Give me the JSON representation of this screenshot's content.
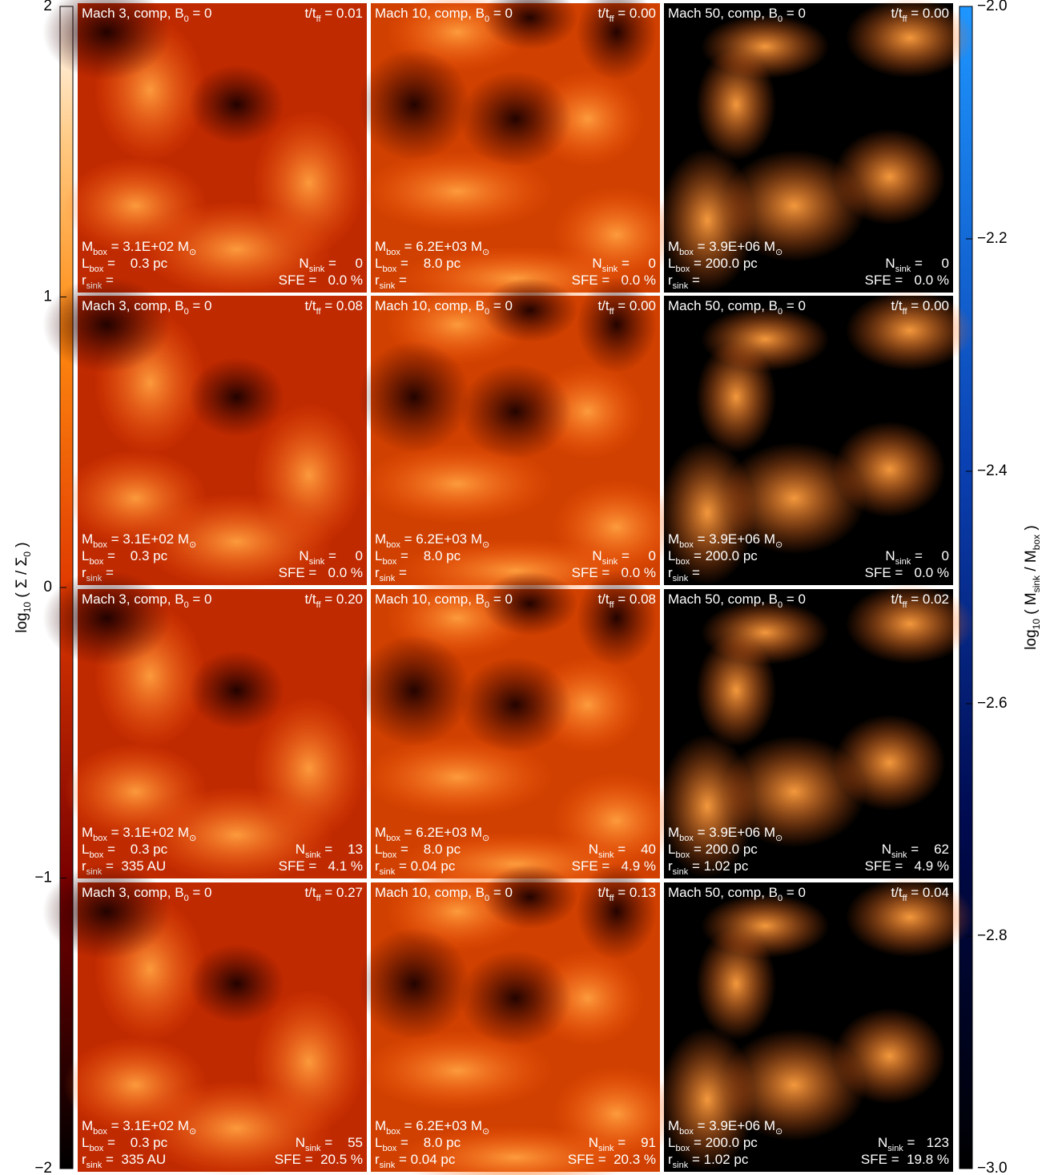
{
  "figure": {
    "colorbar_left": {
      "label": [
        "log",
        "10",
        " ( Σ / Σ",
        "0",
        " )"
      ],
      "ylim": [
        -2,
        2
      ],
      "yticks": [
        {
          "value": -2,
          "label": "−2"
        },
        {
          "value": -1,
          "label": "−1"
        },
        0,
        1,
        2
      ]
    },
    "colorbar_right": {
      "label": [
        "log",
        "10",
        " ( M",
        "sink",
        " / M",
        "box",
        " )"
      ],
      "ylim": [
        -3,
        -2
      ],
      "yticks": [
        {
          "value": -3,
          "label": "−3.0"
        },
        {
          "value": -2.8,
          "label": "−2.8"
        },
        {
          "value": -2.6,
          "label": "−2.6"
        },
        {
          "value": -2.4,
          "label": "−2.4"
        },
        {
          "value": -2.2,
          "label": "−2.2"
        },
        {
          "value": -2,
          "label": "−2.0"
        }
      ]
    },
    "panels": [
      {
        "title": [
          "Mach 3, comp, B",
          "0",
          " = 0"
        ],
        "time": [
          "t/t",
          "ff",
          " = 0.01"
        ],
        "mass": [
          "M",
          "box",
          " = 3.1E+02 M",
          "⊙"
        ],
        "length": [
          "L",
          "box",
          " =    0.3 pc"
        ],
        "radius": [
          "r",
          "sink",
          " ="
        ],
        "nsink": [
          "N",
          "sink",
          " =     0"
        ],
        "sfe": [
          "SFE =   0.0 %"
        ]
      },
      {
        "title": [
          "Mach 10, comp, B",
          "0",
          " = 0"
        ],
        "time": [
          "t/t",
          "ff",
          " = 0.00"
        ],
        "mass": [
          "M",
          "box",
          " = 6.2E+03 M",
          "⊙"
        ],
        "length": [
          "L",
          "box",
          " =    8.0 pc"
        ],
        "radius": [
          "r",
          "sink",
          " ="
        ],
        "nsink": [
          "N",
          "sink",
          " =     0"
        ],
        "sfe": [
          "SFE =   0.0 %"
        ]
      },
      {
        "title": [
          "Mach 50, comp, B",
          "0",
          " = 0"
        ],
        "time": [
          "t/t",
          "ff",
          " = 0.00"
        ],
        "mass": [
          "M",
          "box",
          " = 3.9E+06 M",
          "⊙"
        ],
        "length": [
          "L",
          "box",
          " = 200.0 pc"
        ],
        "radius": [
          "r",
          "sink",
          " ="
        ],
        "nsink": [
          "N",
          "sink",
          " =     0"
        ],
        "sfe": [
          "SFE =   0.0 %"
        ]
      },
      {
        "title": [
          "Mach 3, comp, B",
          "0",
          " = 0"
        ],
        "time": [
          "t/t",
          "ff",
          " = 0.08"
        ],
        "mass": [
          "M",
          "box",
          " = 3.1E+02 M",
          "⊙"
        ],
        "length": [
          "L",
          "box",
          " =    0.3 pc"
        ],
        "radius": [
          "r",
          "sink",
          " ="
        ],
        "nsink": [
          "N",
          "sink",
          " =     0"
        ],
        "sfe": [
          "SFE =   0.0 %"
        ]
      },
      {
        "title": [
          "Mach 10, comp, B",
          "0",
          " = 0"
        ],
        "time": [
          "t/t",
          "ff",
          " = 0.00"
        ],
        "mass": [
          "M",
          "box",
          " = 6.2E+03 M",
          "⊙"
        ],
        "length": [
          "L",
          "box",
          " =    8.0 pc"
        ],
        "radius": [
          "r",
          "sink",
          " ="
        ],
        "nsink": [
          "N",
          "sink",
          " =     0"
        ],
        "sfe": [
          "SFE =   0.0 %"
        ]
      },
      {
        "title": [
          "Mach 50, comp, B",
          "0",
          " = 0"
        ],
        "time": [
          "t/t",
          "ff",
          " = 0.00"
        ],
        "mass": [
          "M",
          "box",
          " = 3.9E+06 M",
          "⊙"
        ],
        "length": [
          "L",
          "box",
          " = 200.0 pc"
        ],
        "radius": [
          "r",
          "sink",
          " ="
        ],
        "nsink": [
          "N",
          "sink",
          " =     0"
        ],
        "sfe": [
          "SFE =   0.0 %"
        ]
      },
      {
        "title": [
          "Mach 3, comp, B",
          "0",
          " = 0"
        ],
        "time": [
          "t/t",
          "ff",
          " = 0.20"
        ],
        "mass": [
          "M",
          "box",
          " = 3.1E+02 M",
          "⊙"
        ],
        "length": [
          "L",
          "box",
          " =    0.3 pc"
        ],
        "radius": [
          "r",
          "sink",
          " =  335 AU"
        ],
        "nsink": [
          "N",
          "sink",
          " =    13"
        ],
        "sfe": [
          "SFE =   4.1 %"
        ]
      },
      {
        "title": [
          "Mach 10, comp, B",
          "0",
          " = 0"
        ],
        "time": [
          "t/t",
          "ff",
          " = 0.08"
        ],
        "mass": [
          "M",
          "box",
          " = 6.2E+03 M",
          "⊙"
        ],
        "length": [
          "L",
          "box",
          " =    8.0 pc"
        ],
        "radius": [
          "r",
          "sink",
          " = 0.04 pc"
        ],
        "nsink": [
          "N",
          "sink",
          " =    40"
        ],
        "sfe": [
          "SFE =   4.9 %"
        ]
      },
      {
        "title": [
          "Mach 50, comp, B",
          "0",
          " = 0"
        ],
        "time": [
          "t/t",
          "ff",
          " = 0.02"
        ],
        "mass": [
          "M",
          "box",
          " = 3.9E+06 M",
          "⊙"
        ],
        "length": [
          "L",
          "box",
          " = 200.0 pc"
        ],
        "radius": [
          "r",
          "sink",
          " = 1.02 pc"
        ],
        "nsink": [
          "N",
          "sink",
          " =    62"
        ],
        "sfe": [
          "SFE =   4.9 %"
        ]
      },
      {
        "title": [
          "Mach 3, comp, B",
          "0",
          " = 0"
        ],
        "time": [
          "t/t",
          "ff",
          " = 0.27"
        ],
        "mass": [
          "M",
          "box",
          " = 3.1E+02 M",
          "⊙"
        ],
        "length": [
          "L",
          "box",
          " =    0.3 pc"
        ],
        "radius": [
          "r",
          "sink",
          " =  335 AU"
        ],
        "nsink": [
          "N",
          "sink",
          " =    55"
        ],
        "sfe": [
          "SFE =  20.5 %"
        ]
      },
      {
        "title": [
          "Mach 10, comp, B",
          "0",
          " = 0"
        ],
        "time": [
          "t/t",
          "ff",
          " = 0.13"
        ],
        "mass": [
          "M",
          "box",
          " = 6.2E+03 M",
          "⊙"
        ],
        "length": [
          "L",
          "box",
          " =    8.0 pc"
        ],
        "radius": [
          "r",
          "sink",
          " = 0.04 pc"
        ],
        "nsink": [
          "N",
          "sink",
          " =    91"
        ],
        "sfe": [
          "SFE =  20.3 %"
        ]
      },
      {
        "title": [
          "Mach 50, comp, B",
          "0",
          " = 0"
        ],
        "time": [
          "t/t",
          "ff",
          " = 0.04"
        ],
        "mass": [
          "M",
          "box",
          " = 3.9E+06 M",
          "⊙"
        ],
        "length": [
          "L",
          "box",
          " = 200.0 pc"
        ],
        "radius": [
          "r",
          "sink",
          " = 1.02 pc"
        ],
        "nsink": [
          "N",
          "sink",
          " =   123"
        ],
        "sfe": [
          "SFE =  19.8 %"
        ]
      }
    ]
  }
}
